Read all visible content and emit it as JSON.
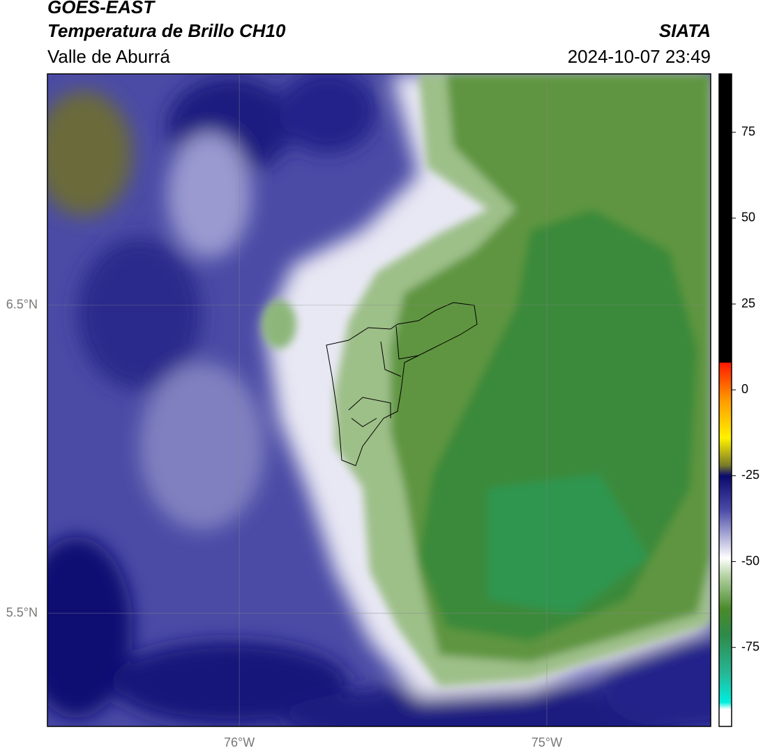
{
  "header": {
    "title": "GOES-EAST",
    "subtitle": "Temperatura de Brillo CH10",
    "region": "Valle de Aburrá",
    "source": "SIATA",
    "datetime": "2024-10-07 23:49"
  },
  "map": {
    "xlim": [
      -76.624,
      -74.467
    ],
    "ylim": [
      5.133,
      7.251
    ],
    "xticks": [
      {
        "value": -76,
        "label": "76°W"
      },
      {
        "value": -75,
        "label": "75°W"
      }
    ],
    "yticks": [
      {
        "value": 6.5,
        "label": "6.5°N"
      },
      {
        "value": 5.5,
        "label": "5.5°N"
      }
    ],
    "grid": true
  },
  "colorbar": {
    "lim": [
      -98,
      92
    ],
    "ticks": [
      75,
      50,
      25,
      0,
      -25,
      -50,
      -75
    ]
  }
}
